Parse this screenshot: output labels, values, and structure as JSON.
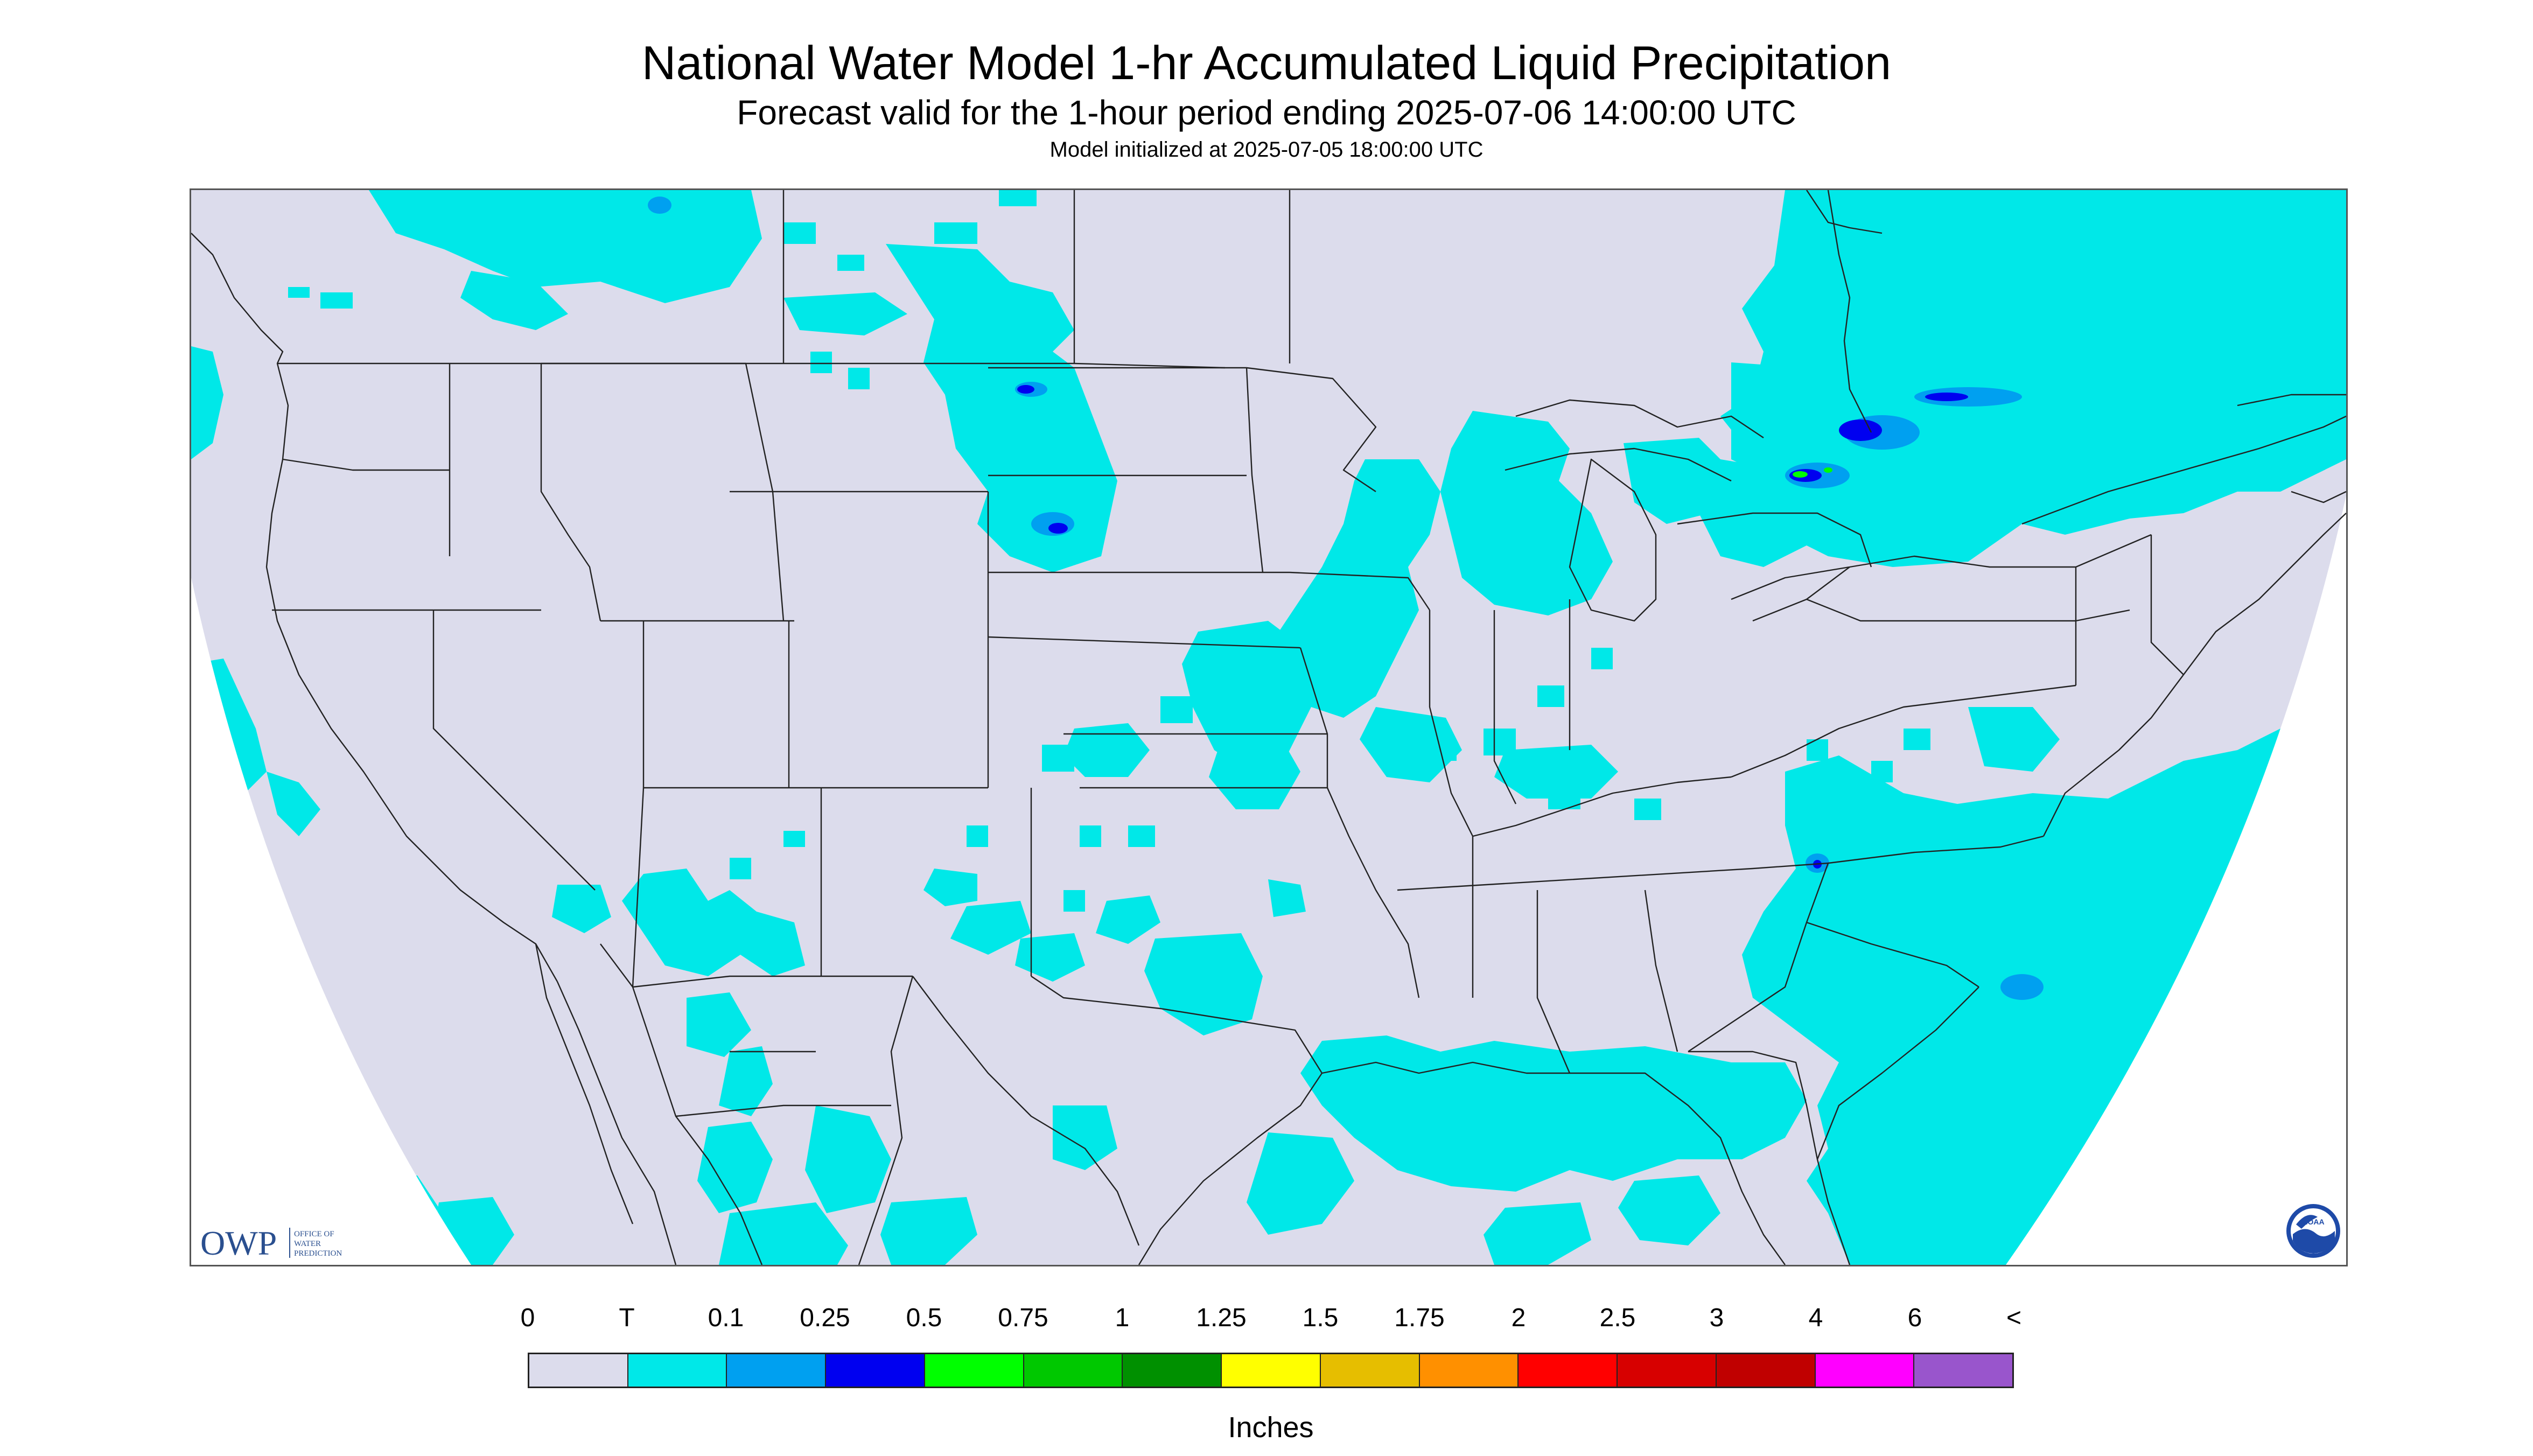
{
  "header": {
    "title": "National Water Model 1-hr Accumulated Liquid Precipitation",
    "subtitle": "Forecast valid for the 1-hour period ending 2025-07-06 14:00:00 UTC",
    "init": "Model initialized at 2025-07-05 18:00:00 UTC"
  },
  "map": {
    "region": "Contiguous United States",
    "background_color": "#dcdcec",
    "outside_color": "#ffffff",
    "boundary_color": "#222222"
  },
  "logos": {
    "owp": {
      "abbr": "OWP",
      "line1": "OFFICE OF",
      "line2": "WATER",
      "line3": "PREDICTION"
    },
    "noaa": {
      "text": "NOAA"
    }
  },
  "legend": {
    "labels": [
      "0",
      "T",
      "0.1",
      "0.25",
      "0.5",
      "0.75",
      "1",
      "1.25",
      "1.5",
      "1.75",
      "2",
      "2.5",
      "3",
      "4",
      "6",
      "<"
    ],
    "colors": [
      "#dcdcec",
      "#00e8e8",
      "#00a0f0",
      "#0000f0",
      "#00ff00",
      "#00c800",
      "#009000",
      "#ffff00",
      "#e6be00",
      "#ff9000",
      "#ff0000",
      "#d70000",
      "#c00000",
      "#ff00ff",
      "#9955cc"
    ],
    "unit": "Inches"
  }
}
